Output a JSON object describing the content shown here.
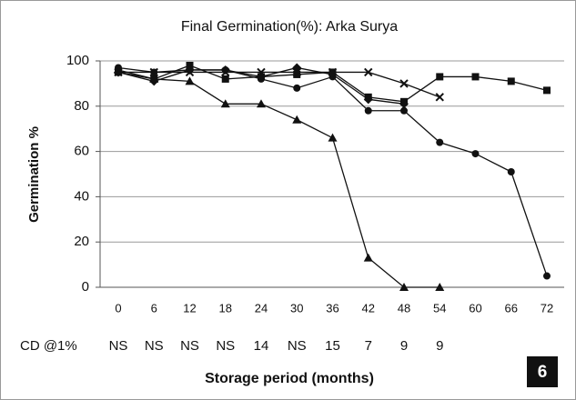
{
  "chart_data": {
    "type": "line",
    "title": "Final Germination(%): Arka Surya",
    "y_label": "Germination %",
    "x_label": "Storage period (months)",
    "categories": [
      "0",
      "6",
      "12",
      "18",
      "24",
      "30",
      "36",
      "42",
      "48",
      "54",
      "60",
      "66",
      "72"
    ],
    "series": [
      {
        "marker": "square",
        "color": "#111111",
        "values": [
          95,
          92,
          98,
          92,
          93,
          94,
          95,
          84,
          82,
          93,
          93,
          91,
          87
        ]
      },
      {
        "marker": "diamond",
        "color": "#111111",
        "values": [
          95,
          91,
          96,
          96,
          93,
          97,
          94,
          83,
          81,
          null,
          null,
          null,
          null
        ]
      },
      {
        "marker": "x",
        "color": "#111111",
        "values": [
          95,
          95,
          95,
          95,
          95,
          95,
          95,
          95,
          90,
          84,
          null,
          null,
          null
        ]
      },
      {
        "marker": "triangle",
        "color": "#111111",
        "values": [
          96,
          92,
          91,
          81,
          81,
          74,
          66,
          13,
          0,
          0,
          null,
          null,
          null
        ]
      },
      {
        "marker": "circle",
        "color": "#111111",
        "values": [
          97,
          95,
          96,
          96,
          92,
          88,
          93,
          78,
          78,
          64,
          59,
          51,
          5
        ]
      }
    ],
    "ylim": [
      0,
      100
    ],
    "yticks": [
      0,
      20,
      40,
      60,
      80,
      100
    ],
    "grid": true,
    "row_label": "CD @1%",
    "row_values": [
      "NS",
      "NS",
      "NS",
      "NS",
      14,
      "NS",
      15,
      7,
      9,
      9
    ],
    "panel_label": "6"
  }
}
